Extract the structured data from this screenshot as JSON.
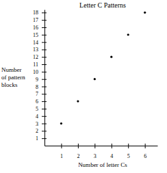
{
  "chart_data": {
    "type": "scatter",
    "title": "Letter C Patterns",
    "xlabel": "Number of letter Cs",
    "ylabel": [
      "Number",
      "of pattern",
      "blocks"
    ],
    "x": [
      1,
      2,
      3,
      4,
      5,
      6
    ],
    "values": [
      3,
      6,
      9,
      12,
      15,
      18
    ],
    "color": "#000000",
    "xlim": [
      0,
      6.75
    ],
    "xticks": [
      1,
      2,
      3,
      4,
      5,
      6
    ],
    "ylim": [
      0,
      18.4
    ],
    "yticks": [
      1,
      2,
      3,
      4,
      5,
      6,
      7,
      8,
      9,
      10,
      11,
      12,
      13,
      14,
      15,
      16,
      17,
      18
    ],
    "grid": false
  }
}
